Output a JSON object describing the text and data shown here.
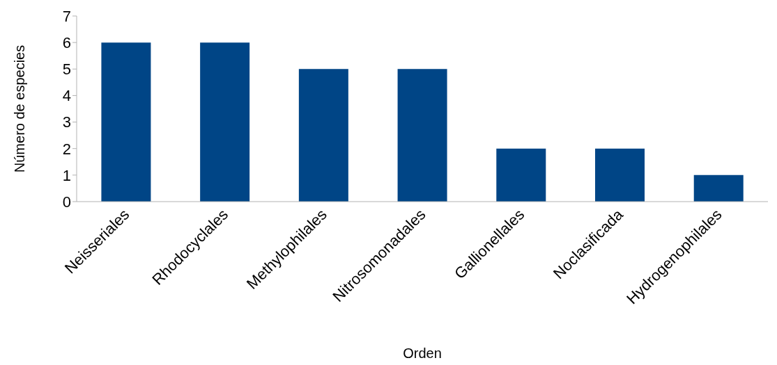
{
  "chart_data": {
    "type": "bar",
    "xlabel": "Orden",
    "ylabel": "Número de especies",
    "categories": [
      "Neisseriales",
      "Rhodocyclales",
      "Methylophilales",
      "Nitrosomonadales",
      "Gallionellales",
      "Noclasificada",
      "Hydrogenophilales"
    ],
    "values": [
      6,
      6,
      5,
      5,
      2,
      2,
      1
    ],
    "color": "#004586",
    "ylim": [
      0,
      7
    ],
    "yticks": [
      0,
      1,
      2,
      3,
      4,
      5,
      6,
      7
    ],
    "grid": false,
    "legend": false
  }
}
